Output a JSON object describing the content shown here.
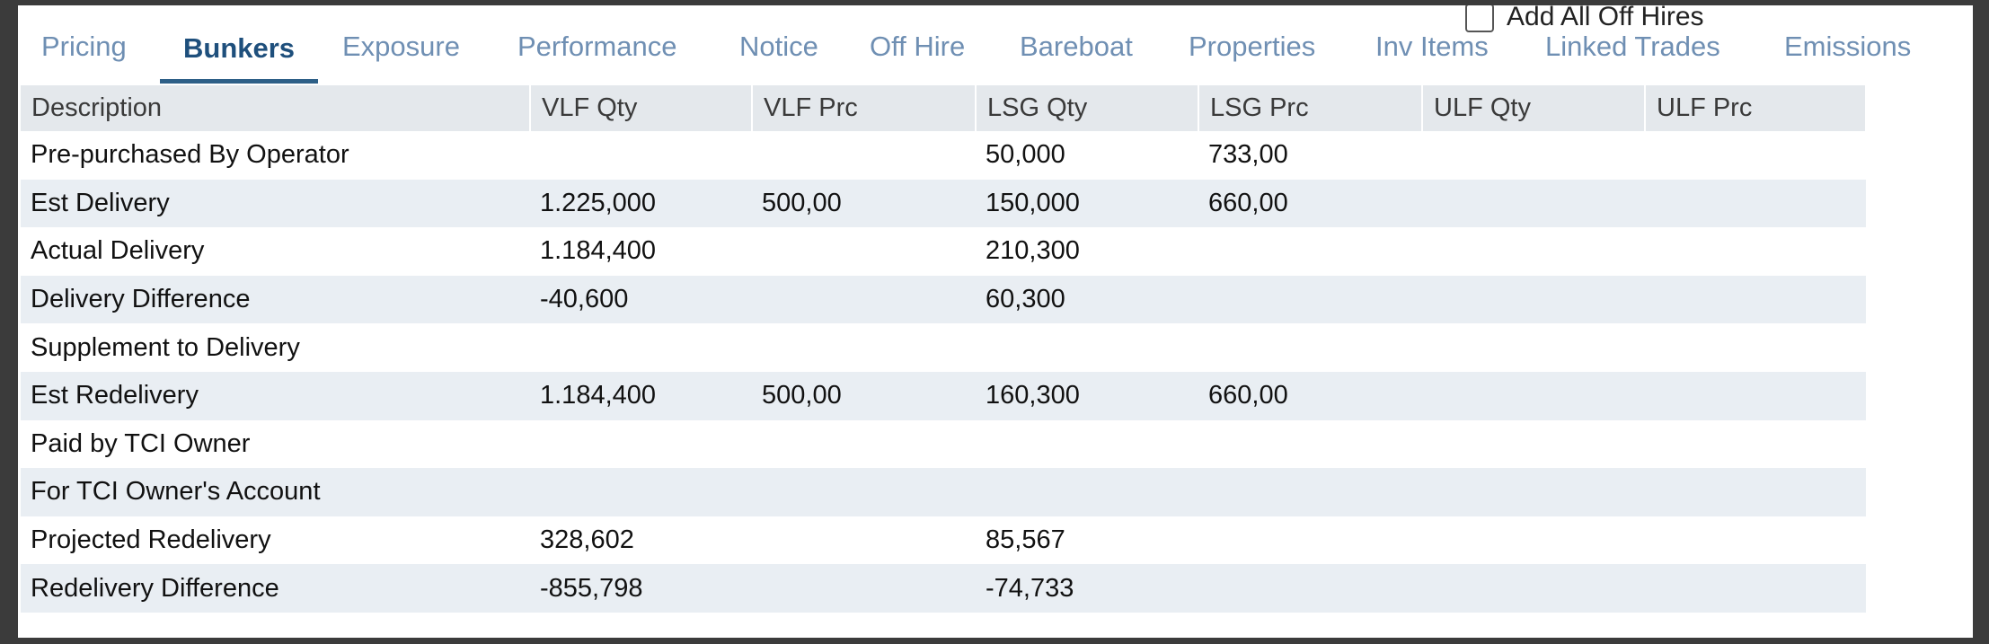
{
  "tabs": [
    "Pricing",
    "Bunkers",
    "Exposure",
    "Performance",
    "Notice",
    "Off Hire",
    "Bareboat",
    "Properties",
    "Inv Items",
    "Linked Trades",
    "Emissions"
  ],
  "active_tab": 1,
  "checkbox": {
    "label": "Add All Off Hires",
    "checked": false
  },
  "table": {
    "columns": [
      "Description",
      "VLF Qty",
      "VLF Prc",
      "LSG Qty",
      "LSG Prc",
      "ULF Qty",
      "ULF Prc"
    ],
    "rows": [
      [
        "Pre-purchased By Operator",
        null,
        null,
        "50,000",
        "733,00",
        null,
        null
      ],
      [
        "Est Delivery",
        "1.225,000",
        "500,00",
        "150,000",
        "660,00",
        null,
        null
      ],
      [
        "Actual Delivery",
        "1.184,400",
        null,
        "210,300",
        null,
        null,
        null
      ],
      [
        "Delivery Difference",
        "-40,600",
        null,
        "60,300",
        null,
        null,
        null
      ],
      [
        "Supplement to Delivery",
        null,
        null,
        null,
        null,
        null,
        null
      ],
      [
        "Est Redelivery",
        "1.184,400",
        "500,00",
        "160,300",
        "660,00",
        null,
        null
      ],
      [
        "Paid by TCI Owner",
        null,
        null,
        null,
        null,
        null,
        null
      ],
      [
        "For TCI Owner's Account",
        null,
        null,
        null,
        null,
        null,
        null
      ],
      [
        "Projected Redelivery",
        "328,602",
        null,
        "85,567",
        null,
        null,
        null
      ],
      [
        "Redelivery Difference",
        "-855,798",
        null,
        "-74,733",
        null,
        null,
        null
      ]
    ]
  }
}
